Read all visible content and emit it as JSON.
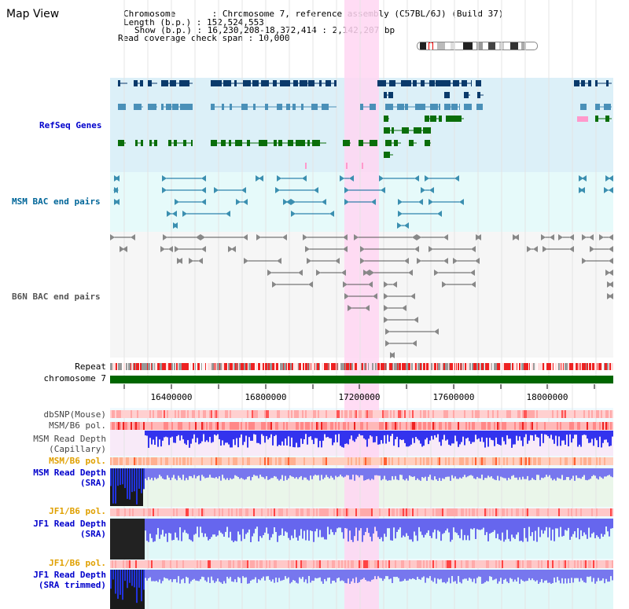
{
  "header": {
    "title": "Map View",
    "chromosome_line": "Chromosome       : Chromosome 7, reference assembly (C57BL/6J) (Build 37)",
    "length_line": "Length (b.p.) : 152,524,553",
    "show_line": "Show (b.p.) : 16,230,208-18,372,414 : 2,142,207 bp",
    "coverage_line": "Read coverage check span : 10,000"
  },
  "tracks": {
    "refseq": "RefSeq Genes",
    "msm_bac": "MSM BAC end pairs",
    "b6n_bac": "B6N BAC end pairs",
    "repeat": "Repeat",
    "chromosome": "chromosome 7",
    "dbsnp": "dbSNP(Mouse)",
    "msm_b6_pol_1": "MSM/B6 pol.",
    "msm_depth_cap_1": "MSM Read Depth",
    "msm_depth_cap_2": "(Capillary)",
    "msm_b6_pol_2": "MSM/B6 pol.",
    "msm_depth_sra_1": "MSM Read Depth",
    "msm_depth_sra_2": "(SRA)",
    "jf1_b6_pol_1": "JF1/B6 pol.",
    "jf1_depth_sra_1": "JF1 Read Depth",
    "jf1_depth_sra_2": "(SRA)",
    "jf1_b6_pol_2": "JF1/B6 pol.",
    "jf1_depth_trim_1": "JF1 Read Depth",
    "jf1_depth_trim_2": "(SRA trimmed)"
  },
  "axis": {
    "ticks": [
      "16400000",
      "16800000",
      "17200000",
      "17600000",
      "18000000"
    ]
  },
  "colors": {
    "refseq_label": "#0000cc",
    "msm_bac_label": "#006699",
    "b6n_label": "#555555",
    "pol_label": "#e0a000",
    "depth_label": "#0000cc",
    "highlight": "#ffd6f2",
    "gene_dark": "#0a3a6b",
    "gene_mid": "#4a90b8",
    "gene_green": "#0a6e0a",
    "chromosome_bar": "#006600"
  }
}
